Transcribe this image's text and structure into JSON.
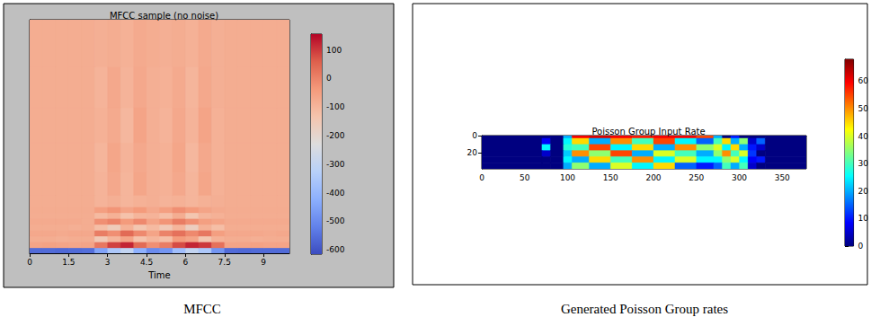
{
  "chart_data": [
    {
      "type": "heatmap",
      "title": "MFCC sample (no noise)",
      "caption": "MFCC",
      "x_label": "Time",
      "xlim": [
        0,
        10
      ],
      "xticks": [
        0,
        1.5,
        3,
        4.5,
        6,
        7.5,
        9
      ],
      "ylim": [
        0,
        40
      ],
      "tick_labels": "x",
      "x_edges": [
        0,
        0.5,
        1,
        1.5,
        2,
        2.5,
        3,
        3.5,
        4,
        4.5,
        5,
        5.5,
        6,
        6.5,
        7,
        7.5,
        8,
        8.5,
        9,
        9.5,
        10
      ],
      "y_edges": [
        0,
        1,
        2,
        3,
        4,
        5,
        6,
        7,
        8,
        10,
        14,
        19,
        25,
        32,
        40
      ],
      "cells": [
        [
          -560,
          -560,
          -565,
          -560,
          -555,
          -450,
          -350,
          -300,
          -420,
          -500,
          -480,
          -380,
          -300,
          -350,
          -480,
          -560,
          -565,
          -560,
          -560,
          -560
        ],
        [
          -60,
          -55,
          -60,
          -65,
          -60,
          20,
          90,
          120,
          40,
          -20,
          10,
          80,
          120,
          100,
          30,
          -60,
          -60,
          -55,
          -60,
          -60
        ],
        [
          -80,
          -80,
          -85,
          -80,
          -80,
          -150,
          -100,
          -60,
          -130,
          -100,
          -120,
          -40,
          -60,
          -140,
          -90,
          -80,
          -80,
          -85,
          -80,
          -80
        ],
        [
          -70,
          -70,
          -75,
          -70,
          -70,
          10,
          -20,
          40,
          -10,
          -60,
          0,
          30,
          -10,
          20,
          -50,
          -70,
          -70,
          -70,
          -75,
          -70
        ],
        [
          -80,
          -80,
          -80,
          -85,
          -80,
          -120,
          -160,
          -90,
          -140,
          -110,
          -150,
          -100,
          -170,
          -90,
          -120,
          -80,
          -80,
          -80,
          -80,
          -80
        ],
        [
          -75,
          -75,
          -75,
          -75,
          -80,
          -20,
          0,
          -40,
          -10,
          -60,
          -30,
          10,
          -20,
          -50,
          -60,
          -75,
          -75,
          -75,
          -75,
          -75
        ],
        [
          -80,
          -80,
          -80,
          -80,
          -80,
          -110,
          -90,
          -130,
          -100,
          -95,
          -120,
          -80,
          -140,
          -100,
          -90,
          -80,
          -80,
          -80,
          -80,
          -80
        ],
        [
          -78,
          -78,
          -78,
          -78,
          -78,
          -50,
          -30,
          -60,
          -40,
          -70,
          -50,
          -20,
          -40,
          -60,
          -75,
          -78,
          -78,
          -78,
          -78,
          -78
        ],
        [
          -80,
          -80,
          -80,
          -80,
          -80,
          -95,
          -85,
          -100,
          -90,
          -85,
          -95,
          -90,
          -100,
          -90,
          -85,
          -80,
          -80,
          -80,
          -80,
          -80
        ],
        [
          -80,
          -80,
          -80,
          -80,
          -80,
          -95,
          -70,
          -100,
          -65,
          -85,
          -90,
          -70,
          -100,
          -65,
          -90,
          -80,
          -80,
          -80,
          -80,
          -80
        ],
        [
          -80,
          -80,
          -80,
          -80,
          -80,
          -100,
          -65,
          -95,
          -70,
          -85,
          -90,
          -65,
          -105,
          -70,
          -90,
          -80,
          -80,
          -80,
          -80,
          -80
        ],
        [
          -80,
          -80,
          -80,
          -80,
          -80,
          -90,
          -75,
          -105,
          -60,
          -85,
          -95,
          -70,
          -95,
          -60,
          -90,
          -80,
          -80,
          -80,
          -80,
          -80
        ],
        [
          -80,
          -80,
          -80,
          -80,
          -80,
          -95,
          -70,
          -95,
          -70,
          -85,
          -90,
          -75,
          -100,
          -70,
          -85,
          -80,
          -80,
          -80,
          -80,
          -80
        ],
        [
          -80,
          -80,
          -80,
          -80,
          -80,
          -85,
          -80,
          -90,
          -75,
          -80,
          -85,
          -80,
          -90,
          -75,
          -85,
          -80,
          -80,
          -80,
          -80,
          -80
        ]
      ],
      "colorbar": {
        "range": [
          -615,
          155
        ],
        "ticks": [
          -600,
          -500,
          -400,
          -300,
          -200,
          -100,
          0,
          100
        ]
      }
    },
    {
      "type": "heatmap",
      "title": "Poisson Group Input Rate",
      "caption": "Generated Poisson Group rates",
      "xlim": [
        0,
        378
      ],
      "xticks": [
        0,
        50,
        100,
        150,
        200,
        250,
        300,
        350
      ],
      "ylim": [
        0,
        38
      ],
      "yticks": [
        0,
        20
      ],
      "x_edges": [
        0,
        70,
        80,
        95,
        105,
        125,
        150,
        175,
        200,
        225,
        250,
        270,
        280,
        290,
        300,
        310,
        320,
        330,
        378
      ],
      "y_edges": [
        0,
        3,
        10,
        17,
        24,
        31,
        38
      ],
      "cells": [
        [
          0,
          0,
          0,
          20,
          60,
          62,
          60,
          58,
          60,
          60,
          55,
          20,
          0,
          10,
          0,
          0,
          0,
          0
        ],
        [
          0,
          8,
          0,
          25,
          45,
          20,
          50,
          30,
          55,
          25,
          15,
          30,
          45,
          20,
          35,
          5,
          15,
          0
        ],
        [
          0,
          25,
          0,
          28,
          30,
          55,
          25,
          45,
          20,
          50,
          35,
          40,
          25,
          45,
          20,
          10,
          5,
          0
        ],
        [
          0,
          5,
          0,
          22,
          50,
          35,
          55,
          20,
          40,
          30,
          20,
          35,
          50,
          30,
          40,
          12,
          0,
          0
        ],
        [
          0,
          0,
          0,
          25,
          20,
          45,
          30,
          50,
          25,
          40,
          25,
          25,
          35,
          40,
          25,
          8,
          10,
          0
        ],
        [
          0,
          0,
          0,
          20,
          35,
          20,
          40,
          25,
          45,
          15,
          10,
          15,
          30,
          20,
          30,
          5,
          0,
          0
        ]
      ],
      "colorbar": {
        "range": [
          0,
          68
        ],
        "ticks": [
          0,
          10,
          20,
          30,
          40,
          50,
          60
        ]
      }
    }
  ]
}
